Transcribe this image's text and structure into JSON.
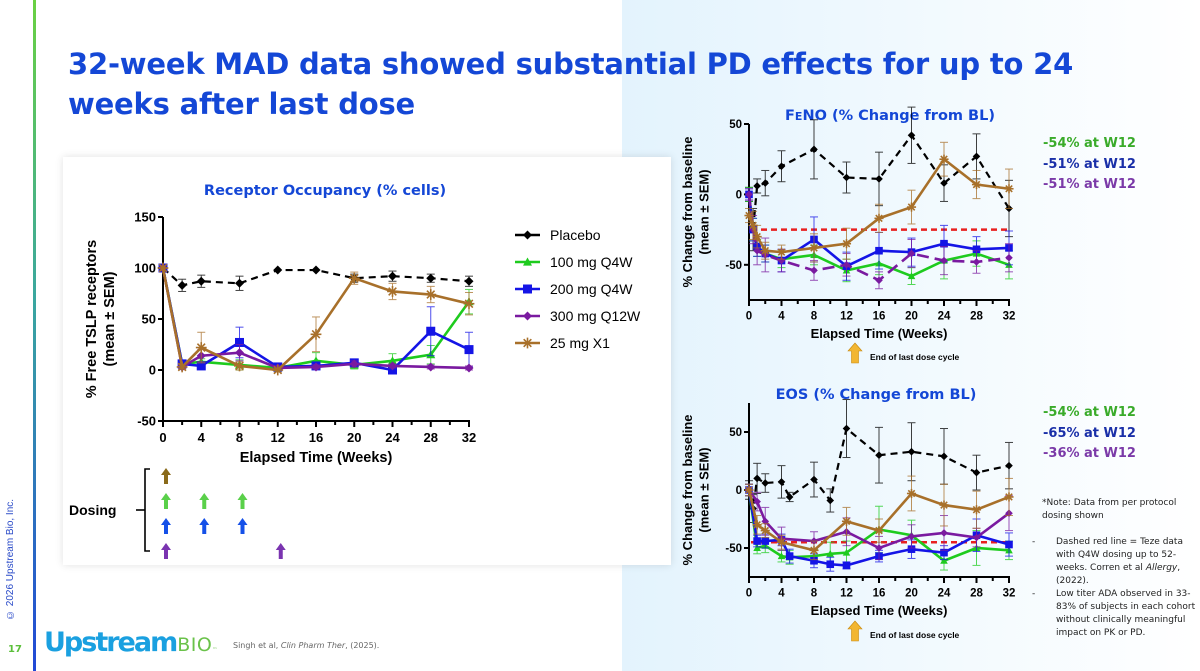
{
  "slide": {
    "title": "32-week MAD data showed substantial PD effects for up to 24 weeks after last dose",
    "page_number": "17",
    "copyright": "© 2026 Upstream Bio, Inc.",
    "logo": {
      "main": "Upstream",
      "suffix": "BIO",
      "tm": "™"
    },
    "citation_prefix": "Singh et al, ",
    "citation_journal": "Clin Pharm Ther",
    "citation_suffix": ", (2025).",
    "colors": {
      "title": "#1447d6",
      "placebo": "#000000",
      "q4w100": "#1ecb1e",
      "q4w200": "#1414e6",
      "q12w300": "#7a1aa0",
      "x1_25": "#a8702a",
      "teze": "#e82020"
    }
  },
  "dosing": {
    "label": "Dosing",
    "rows": [
      {
        "series": "25 mg X1",
        "color": "#8a6a1a",
        "weeks": [
          0
        ]
      },
      {
        "series": "100 mg Q4W",
        "color": "#5ad04a",
        "weeks": [
          0,
          4,
          8
        ]
      },
      {
        "series": "200 mg Q4W",
        "color": "#1550e8",
        "weeks": [
          0,
          4,
          8
        ]
      },
      {
        "series": "300 mg Q12W",
        "color": "#7a34b0",
        "weeks": [
          0,
          12
        ]
      }
    ]
  },
  "feno_callouts": [
    {
      "text": "-54% at W12",
      "color": "#3aab2a"
    },
    {
      "text": "-51% at W12",
      "color": "#1a2fa8"
    },
    {
      "text": "-51% at W12",
      "color": "#7b3aa8"
    }
  ],
  "eos_callouts": [
    {
      "text": "-54% at W12",
      "color": "#3aab2a"
    },
    {
      "text": "-65% at W12",
      "color": "#1a2fa8"
    },
    {
      "text": "-36% at W12",
      "color": "#7b3aa8"
    }
  ],
  "notes": {
    "intro": "*Note: Data from per protocol dosing shown",
    "bullet1_a": "Dashed red line = Teze data with Q4W dosing up to 52-weeks. Corren et al ",
    "bullet1_italic": "Allergy",
    "bullet1_b": ", (2022).",
    "bullet2": "Low titer ADA observed in 33-83% of subjects in each cohort without clinically meaningful impact on PK or PD."
  },
  "end_of_dose_label": "End of last dose cycle",
  "chart_data": [
    {
      "id": "ro",
      "type": "line",
      "title": "Receptor Occupancy (% cells)",
      "xlabel": "Elapsed Time (Weeks)",
      "ylabel": "% Free TSLP receptors",
      "ylabel2": "(mean ± SEM)",
      "xlim": [
        0,
        32
      ],
      "ylim": [
        -50,
        150
      ],
      "xticks": [
        0,
        4,
        8,
        12,
        16,
        20,
        24,
        28,
        32
      ],
      "yticks": [
        -50,
        0,
        50,
        100,
        150
      ],
      "legend_position": "right",
      "series": [
        {
          "name": "Placebo",
          "color": "#000000",
          "marker": "diamond",
          "dashed": true,
          "x": [
            0,
            2,
            4,
            8,
            12,
            16,
            20,
            24,
            28,
            32
          ],
          "y": [
            100,
            83,
            87,
            85,
            98,
            98,
            90,
            92,
            90,
            87
          ],
          "err": [
            3,
            6,
            6,
            7,
            0,
            0,
            4,
            5,
            4,
            5
          ]
        },
        {
          "name": "100 mg Q4W",
          "color": "#1ecb1e",
          "marker": "triangle",
          "dashed": false,
          "x": [
            0,
            2,
            4,
            8,
            12,
            16,
            20,
            24,
            28,
            32
          ],
          "y": [
            100,
            6,
            8,
            5,
            2,
            9,
            5,
            9,
            15,
            67
          ],
          "err": [
            0,
            3,
            3,
            5,
            2,
            8,
            4,
            7,
            9,
            12
          ]
        },
        {
          "name": "200 mg Q4W",
          "color": "#1414e6",
          "marker": "square",
          "dashed": false,
          "x": [
            0,
            2,
            4,
            8,
            12,
            16,
            20,
            24,
            28,
            32
          ],
          "y": [
            100,
            6,
            4,
            27,
            3,
            4,
            7,
            0,
            38,
            20
          ],
          "err": [
            0,
            3,
            3,
            15,
            2,
            3,
            3,
            2,
            24,
            17
          ]
        },
        {
          "name": "300 mg Q12W",
          "color": "#7a1aa0",
          "marker": "diamond",
          "dashed": false,
          "x": [
            0,
            2,
            4,
            8,
            12,
            16,
            20,
            24,
            28,
            32
          ],
          "y": [
            100,
            3,
            14,
            17,
            2,
            3,
            6,
            4,
            3,
            2
          ],
          "err": [
            0,
            2,
            6,
            8,
            2,
            2,
            3,
            2,
            2,
            2
          ]
        },
        {
          "name": "25 mg X1",
          "color": "#a8702a",
          "marker": "star",
          "dashed": false,
          "x": [
            0,
            2,
            4,
            8,
            12,
            16,
            20,
            24,
            28,
            32
          ],
          "y": [
            100,
            3,
            22,
            4,
            0,
            35,
            90,
            77,
            74,
            65
          ],
          "err": [
            0,
            2,
            15,
            4,
            2,
            17,
            6,
            8,
            8,
            11
          ]
        }
      ]
    },
    {
      "id": "feno",
      "type": "line",
      "title": "FeNO (% Change from BL)",
      "title_parts": [
        "F",
        "E",
        "NO (% Change from BL)"
      ],
      "xlabel": "Elapsed Time (Weeks)",
      "ylabel": "% Change from baseline",
      "ylabel2": "(mean ± SEM)",
      "xlim": [
        0,
        32
      ],
      "ylim": [
        -75,
        50
      ],
      "xticks": [
        0,
        4,
        8,
        12,
        16,
        20,
        24,
        28,
        32
      ],
      "yticks": [
        -50,
        0,
        50
      ],
      "reference_line": {
        "name": "Teze Q4W",
        "y": -25,
        "color": "#e82020"
      },
      "series": [
        {
          "name": "Placebo",
          "color": "#000000",
          "marker": "diamond",
          "dashed": true,
          "x": [
            0,
            0.5,
            1,
            2,
            4,
            8,
            12,
            16,
            20,
            24,
            28,
            32
          ],
          "y": [
            0,
            -25,
            6,
            8,
            20,
            32,
            12,
            11,
            42,
            8,
            27,
            -10
          ],
          "err": [
            5,
            15,
            5,
            9,
            11,
            21,
            11,
            19,
            20,
            13,
            16,
            20
          ]
        },
        {
          "name": "100 mg Q4W",
          "color": "#1ecb1e",
          "marker": "triangle",
          "dashed": false,
          "x": [
            0,
            0.5,
            1,
            2,
            4,
            8,
            12,
            16,
            20,
            24,
            28,
            32
          ],
          "y": [
            0,
            -25,
            -38,
            -42,
            -46,
            -43,
            -54,
            -49,
            -58,
            -47,
            -42,
            -50
          ],
          "err": [
            5,
            8,
            6,
            6,
            6,
            7,
            8,
            8,
            6,
            13,
            9,
            10
          ]
        },
        {
          "name": "200 mg Q4W",
          "color": "#1414e6",
          "marker": "square",
          "dashed": false,
          "x": [
            0,
            0.5,
            1,
            2,
            4,
            8,
            12,
            16,
            20,
            24,
            28,
            32
          ],
          "y": [
            0,
            -25,
            -37,
            -42,
            -47,
            -32,
            -51,
            -40,
            -41,
            -35,
            -39,
            -38
          ],
          "err": [
            4,
            8,
            7,
            6,
            8,
            16,
            10,
            13,
            10,
            13,
            9,
            12
          ]
        },
        {
          "name": "300 mg Q12W",
          "color": "#7a1aa0",
          "marker": "diamond",
          "dashed": true,
          "x": [
            0,
            0.5,
            1,
            2,
            4,
            8,
            12,
            16,
            20,
            24,
            28,
            32
          ],
          "y": [
            0,
            -25,
            -40,
            -43,
            -47,
            -54,
            -50,
            -61,
            -42,
            -47,
            -48,
            -45
          ],
          "err": [
            4,
            10,
            10,
            12,
            8,
            7,
            8,
            6,
            10,
            10,
            8,
            10
          ]
        },
        {
          "name": "25 mg X1",
          "color": "#a8702a",
          "marker": "star",
          "dashed": false,
          "x": [
            0,
            0.5,
            1,
            2,
            4,
            8,
            12,
            16,
            20,
            24,
            28,
            32
          ],
          "y": [
            -15,
            -22,
            -30,
            -40,
            -41,
            -38,
            -35,
            -17,
            -9,
            25,
            7,
            4
          ],
          "err": [
            5,
            10,
            8,
            6,
            5,
            10,
            11,
            10,
            12,
            12,
            10,
            14
          ]
        }
      ]
    },
    {
      "id": "eos",
      "type": "line",
      "title": "EOS (% Change from BL)",
      "xlabel": "Elapsed Time (Weeks)",
      "ylabel": "% Change from baseline",
      "ylabel2": "(mean ± SEM)",
      "xlim": [
        0,
        32
      ],
      "ylim": [
        -75,
        75
      ],
      "xticks": [
        0,
        4,
        8,
        12,
        16,
        20,
        24,
        28,
        32
      ],
      "yticks": [
        -50,
        0,
        50
      ],
      "reference_line": {
        "name": "Teze Q4W",
        "y": -45,
        "color": "#e82020"
      },
      "series": [
        {
          "name": "Placebo",
          "color": "#000000",
          "marker": "diamond",
          "dashed": true,
          "x": [
            0,
            0.5,
            1,
            2,
            4,
            5,
            8,
            10,
            12,
            16,
            20,
            24,
            28,
            32
          ],
          "y": [
            0,
            -16,
            10,
            6,
            7,
            -6,
            9,
            -9,
            53,
            30,
            33,
            29,
            15,
            21
          ],
          "err": [
            8,
            12,
            13,
            8,
            14,
            4,
            15,
            10,
            25,
            24,
            25,
            24,
            15,
            20
          ]
        },
        {
          "name": "100 mg Q4W",
          "color": "#1ecb1e",
          "marker": "triangle",
          "dashed": false,
          "x": [
            0,
            1,
            2,
            4,
            5,
            8,
            10,
            12,
            16,
            20,
            24,
            28,
            32
          ],
          "y": [
            0,
            -50,
            -48,
            -57,
            -58,
            -57,
            -55,
            -54,
            -34,
            -39,
            -61,
            -50,
            -52
          ],
          "err": [
            5,
            5,
            6,
            5,
            6,
            6,
            10,
            10,
            20,
            13,
            8,
            15,
            8
          ]
        },
        {
          "name": "200 mg Q4W",
          "color": "#1414e6",
          "marker": "square",
          "dashed": false,
          "x": [
            0,
            1,
            2,
            4,
            5,
            8,
            10,
            12,
            16,
            20,
            24,
            28,
            32
          ],
          "y": [
            0,
            -44,
            -44,
            -43,
            -57,
            -61,
            -64,
            -65,
            -57,
            -51,
            -54,
            -39,
            -47
          ],
          "err": [
            5,
            5,
            6,
            5,
            6,
            6,
            6,
            3,
            5,
            8,
            6,
            14,
            10
          ]
        },
        {
          "name": "300 mg Q12W",
          "color": "#7a1aa0",
          "marker": "diamond",
          "dashed": false,
          "x": [
            0,
            1,
            2,
            4,
            8,
            12,
            16,
            20,
            24,
            28,
            32
          ],
          "y": [
            0,
            -10,
            -27,
            -42,
            -44,
            -36,
            -50,
            -40,
            -37,
            -41,
            -20
          ],
          "err": [
            5,
            8,
            12,
            10,
            8,
            12,
            10,
            10,
            15,
            8,
            15
          ]
        },
        {
          "name": "25 mg X1",
          "color": "#a8702a",
          "marker": "star",
          "dashed": false,
          "x": [
            0,
            1,
            2,
            4,
            8,
            12,
            16,
            20,
            24,
            28,
            32
          ],
          "y": [
            0,
            -30,
            -35,
            -45,
            -52,
            -27,
            -35,
            -3,
            -13,
            -17,
            -6
          ],
          "err": [
            5,
            8,
            6,
            6,
            8,
            12,
            10,
            15,
            18,
            16,
            16
          ]
        }
      ]
    }
  ]
}
